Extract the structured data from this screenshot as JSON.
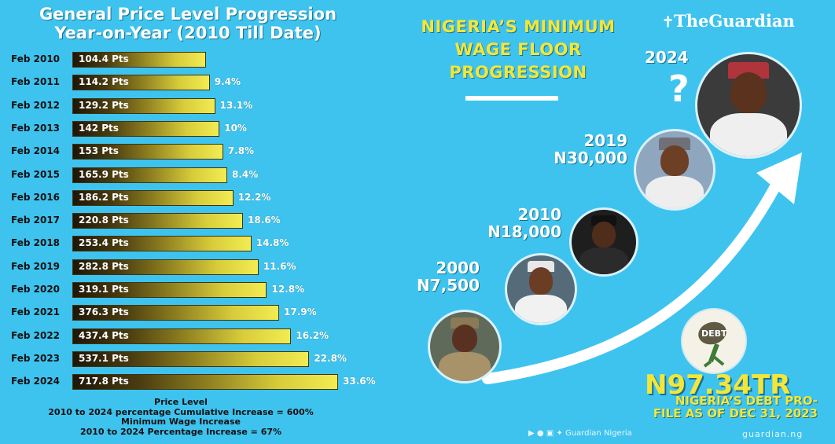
{
  "left_panel": {
    "title_line1": "General Price Level Progression",
    "title_line2": "Year-on-Year (2010 Till Date)",
    "rows": [
      {
        "year": "Feb 2010",
        "value": "104.4 Pts",
        "pts": 104.4,
        "pct": ""
      },
      {
        "year": "Feb 2011",
        "value": "114.2 Pts",
        "pts": 114.2,
        "pct": "9.4%"
      },
      {
        "year": "Feb 2012",
        "value": "129.2 Pts",
        "pts": 129.2,
        "pct": "13.1%"
      },
      {
        "year": "Feb 2013",
        "value": "142 Pts",
        "pts": 142,
        "pct": "10%"
      },
      {
        "year": "Feb 2014",
        "value": "153 Pts",
        "pts": 153,
        "pct": "7.8%"
      },
      {
        "year": "Feb 2015",
        "value": "165.9 Pts",
        "pts": 165.9,
        "pct": "8.4%"
      },
      {
        "year": "Feb 2016",
        "value": "186.2 Pts",
        "pts": 186.2,
        "pct": "12.2%"
      },
      {
        "year": "Feb 2017",
        "value": "220.8 Pts",
        "pts": 220.8,
        "pct": "18.6%"
      },
      {
        "year": "Feb 2018",
        "value": "253.4 Pts",
        "pts": 253.4,
        "pct": "14.8%"
      },
      {
        "year": "Feb 2019",
        "value": "282.8 Pts",
        "pts": 282.8,
        "pct": "11.6%"
      },
      {
        "year": "Feb 2020",
        "value": "319.1 Pts",
        "pts": 319.1,
        "pct": "12.8%"
      },
      {
        "year": "Feb 2021",
        "value": "376.3 Pts",
        "pts": 376.3,
        "pct": "17.9%"
      },
      {
        "year": "Feb 2022",
        "value": "437.4 Pts",
        "pts": 437.4,
        "pct": "16.2%"
      },
      {
        "year": "Feb 2023",
        "value": "537.1 Pts",
        "pts": 537.1,
        "pct": "22.8%"
      },
      {
        "year": "Feb 2024",
        "value": "717.8 Pts",
        "pts": 717.8,
        "pct": "33.6%"
      }
    ],
    "notes": {
      "line1": "Price Level",
      "line2": "2010 to 2024 percentage Cumulative Increase = 600%",
      "line3": "Minimum Wage Increase",
      "line4": "2010 to 2024 Percentage Increase = 67%"
    }
  },
  "right_panel": {
    "title_line1": "NIGERIA’S MINIMUM",
    "title_line2": "WAGE FLOOR",
    "title_line3": "PROGRESSION",
    "logo": "TheGuardian",
    "milestones": [
      {
        "year": "2000",
        "wage": "N7,500"
      },
      {
        "year": "2010",
        "wage": "N18,000"
      },
      {
        "year": "2019",
        "wage": "N30,000"
      },
      {
        "year": "2024",
        "wage": "?"
      }
    ],
    "debt_badge": "DEBT",
    "debt_amount": "N97.34TR",
    "debt_line1": "NIGERIA’S DEBT PRO-",
    "debt_line2": "FILE AS OF DEC 31, 2023",
    "social_handle": "Guardian Nigeria",
    "website": "guardian.ng",
    "colors": {
      "background": "#3ec3ef",
      "accent_yellow": "#f3e63a"
    }
  }
}
